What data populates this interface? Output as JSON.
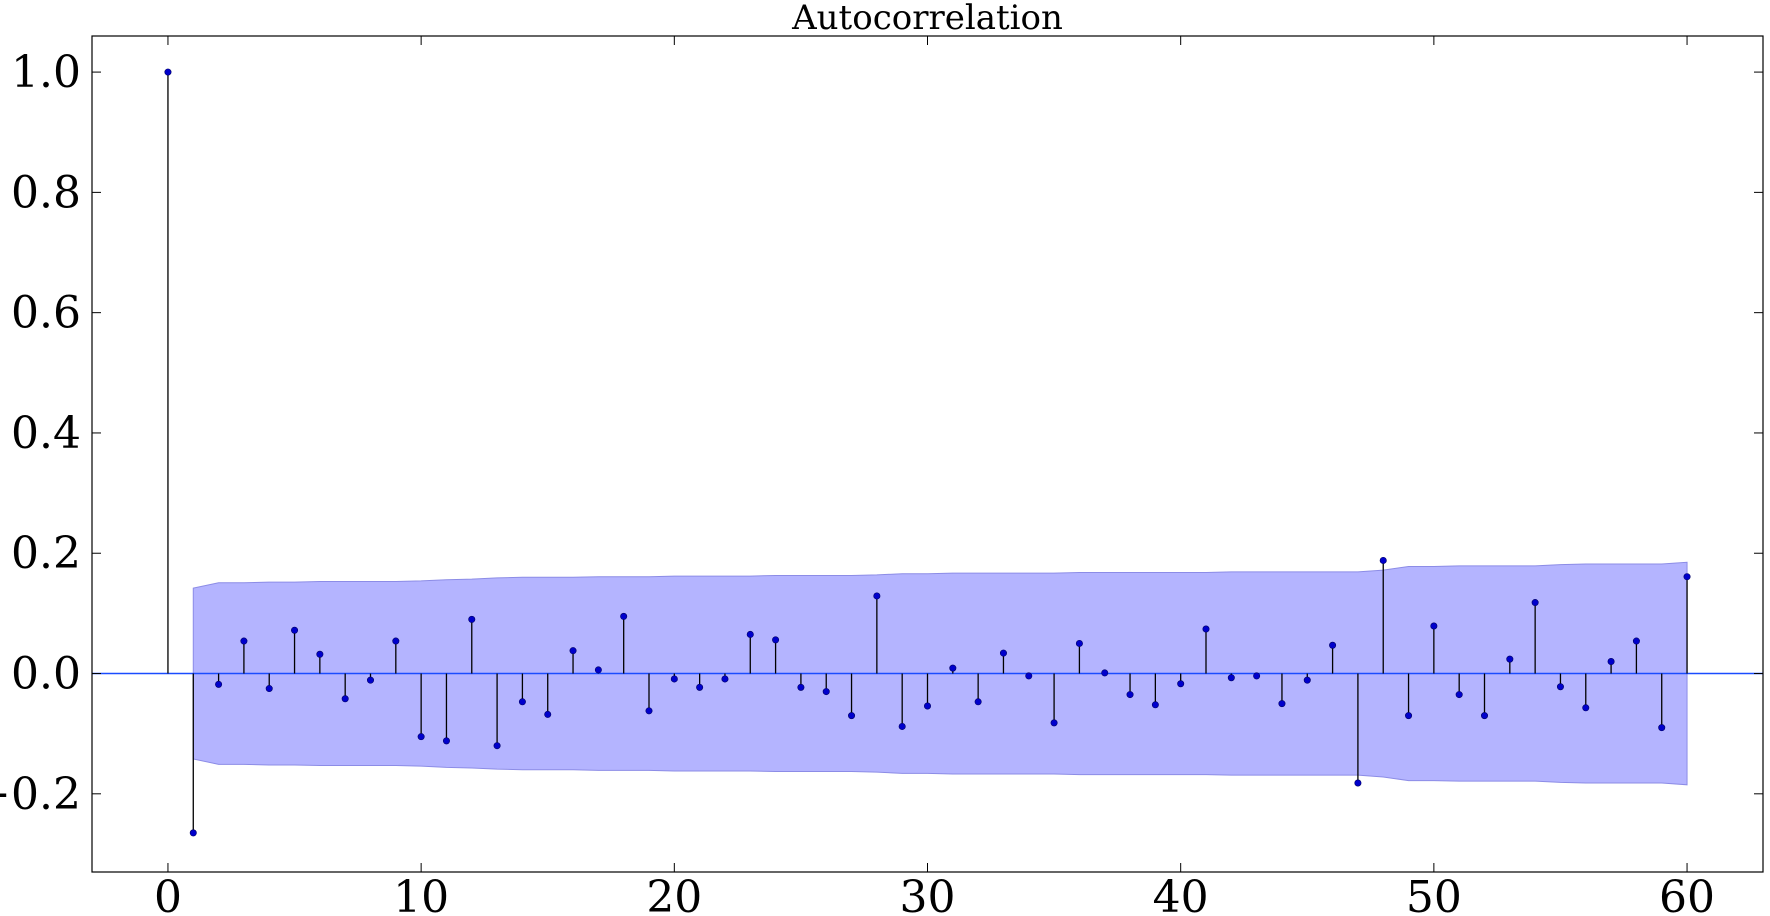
{
  "chart_data": {
    "type": "stem",
    "title": "Autocorrelation",
    "xlabel": "",
    "ylabel": "",
    "xlim": [
      -3,
      63
    ],
    "ylim": [
      -0.33,
      1.06
    ],
    "x_ticks": [
      0,
      10,
      20,
      30,
      40,
      50,
      60
    ],
    "x_tick_labels": [
      "0",
      "10",
      "20",
      "30",
      "40",
      "50",
      "60"
    ],
    "y_ticks": [
      -0.2,
      0.0,
      0.2,
      0.4,
      0.6,
      0.8,
      1.0
    ],
    "y_tick_labels": [
      "−0.2",
      "0.0",
      "0.2",
      "0.4",
      "0.6",
      "0.8",
      "1.0"
    ],
    "lags": [
      0,
      1,
      2,
      3,
      4,
      5,
      6,
      7,
      8,
      9,
      10,
      11,
      12,
      13,
      14,
      15,
      16,
      17,
      18,
      19,
      20,
      21,
      22,
      23,
      24,
      25,
      26,
      27,
      28,
      29,
      30,
      31,
      32,
      33,
      34,
      35,
      36,
      37,
      38,
      39,
      40,
      41,
      42,
      43,
      44,
      45,
      46,
      47,
      48,
      49,
      50,
      51,
      52,
      53,
      54,
      55,
      56,
      57,
      58,
      59,
      60
    ],
    "values": [
      1.0,
      -0.265,
      -0.018,
      0.054,
      -0.025,
      0.072,
      0.032,
      -0.042,
      -0.011,
      0.054,
      -0.105,
      -0.112,
      0.09,
      -0.12,
      -0.047,
      -0.068,
      0.038,
      0.006,
      0.095,
      -0.062,
      -0.009,
      -0.023,
      -0.009,
      0.065,
      0.056,
      -0.023,
      -0.03,
      -0.07,
      0.129,
      -0.088,
      -0.054,
      0.009,
      -0.047,
      0.034,
      -0.004,
      -0.082,
      0.05,
      0.001,
      -0.035,
      -0.052,
      -0.017,
      0.074,
      -0.007,
      -0.004,
      -0.05,
      -0.011,
      0.047,
      -0.182,
      0.188,
      -0.07,
      0.079,
      -0.035,
      -0.07,
      0.024,
      0.118,
      -0.022,
      -0.057,
      0.02,
      0.054,
      -0.09,
      0.161
    ],
    "confidence_band": {
      "lags": [
        1,
        2,
        3,
        4,
        5,
        6,
        7,
        8,
        9,
        10,
        11,
        12,
        13,
        14,
        15,
        16,
        17,
        18,
        19,
        20,
        21,
        22,
        23,
        24,
        25,
        26,
        27,
        28,
        29,
        30,
        31,
        32,
        33,
        34,
        35,
        36,
        37,
        38,
        39,
        40,
        41,
        42,
        43,
        44,
        45,
        46,
        47,
        48,
        49,
        50,
        51,
        52,
        53,
        54,
        55,
        56,
        57,
        58,
        59,
        60
      ],
      "upper": [
        0.142,
        0.151,
        0.151,
        0.152,
        0.152,
        0.153,
        0.153,
        0.153,
        0.153,
        0.154,
        0.156,
        0.157,
        0.159,
        0.16,
        0.16,
        0.16,
        0.161,
        0.161,
        0.161,
        0.162,
        0.162,
        0.162,
        0.162,
        0.163,
        0.163,
        0.163,
        0.163,
        0.164,
        0.166,
        0.166,
        0.167,
        0.167,
        0.167,
        0.167,
        0.167,
        0.168,
        0.168,
        0.168,
        0.168,
        0.168,
        0.168,
        0.169,
        0.169,
        0.169,
        0.169,
        0.169,
        0.169,
        0.172,
        0.178,
        0.178,
        0.179,
        0.179,
        0.179,
        0.179,
        0.181,
        0.182,
        0.182,
        0.182,
        0.182,
        0.185
      ],
      "color": "#b4b4ff",
      "edge_color": "#8c8ce6"
    },
    "stem_color": "#000000",
    "marker_color": "#0000cc",
    "baseline_color": "#1a4cff",
    "grid": false,
    "legend": false
  }
}
